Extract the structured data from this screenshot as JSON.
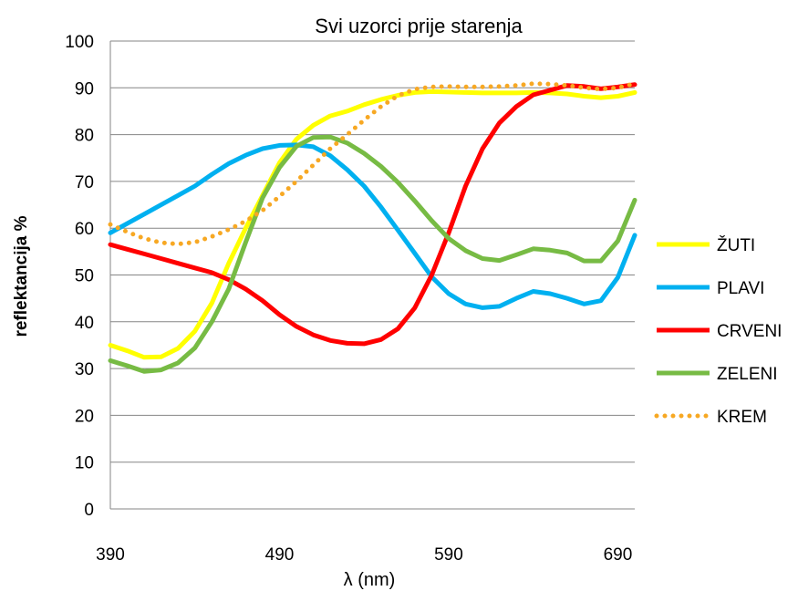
{
  "chart_data": {
    "type": "line",
    "title": "Svi uzorci prije starenja",
    "xlabel": "λ (nm)",
    "ylabel": "reflektancija %",
    "xlim": [
      390,
      700
    ],
    "ylim": [
      0,
      100
    ],
    "x_ticks": [
      390,
      490,
      590,
      690
    ],
    "y_ticks": [
      0,
      10,
      20,
      30,
      40,
      50,
      60,
      70,
      80,
      90,
      100
    ],
    "x_tick_labels": [
      "390",
      "490",
      "590",
      "690"
    ],
    "y_tick_labels": [
      "0",
      "10",
      "20",
      "30",
      "40",
      "50",
      "60",
      "70",
      "80",
      "90",
      "100"
    ],
    "grid": "horizontal",
    "legend_position": "right",
    "x": [
      390,
      400,
      410,
      420,
      430,
      440,
      450,
      460,
      470,
      480,
      490,
      500,
      510,
      520,
      530,
      540,
      550,
      560,
      570,
      580,
      590,
      600,
      610,
      620,
      630,
      640,
      650,
      660,
      670,
      680,
      690,
      700
    ],
    "series": [
      {
        "name": "ŽUTI",
        "color": "#ffff00",
        "style": "solid",
        "values": [
          35,
          33.8,
          32.4,
          32.5,
          34.3,
          38,
          44,
          52.5,
          60,
          67,
          74,
          79,
          82,
          84,
          85,
          86.4,
          87.5,
          88.4,
          89,
          89.2,
          89.1,
          89,
          88.9,
          88.9,
          88.9,
          89,
          88.9,
          88.7,
          88.2,
          87.9,
          88.2,
          89
        ]
      },
      {
        "name": "PLAVI",
        "color": "#00b0f0",
        "style": "solid",
        "values": [
          59,
          61,
          63,
          65,
          67,
          69,
          71.5,
          73.8,
          75.6,
          77,
          77.7,
          77.8,
          77.4,
          75.5,
          72.5,
          69,
          64.5,
          59.6,
          54.6,
          49.6,
          46,
          43.8,
          43,
          43.3,
          45,
          46.5,
          46,
          45,
          43.8,
          44.5,
          49.5,
          58.5
        ]
      },
      {
        "name": "CRVENI",
        "color": "#ff0000",
        "style": "solid",
        "values": [
          56.5,
          55.5,
          54.5,
          53.5,
          52.5,
          51.5,
          50.5,
          49,
          47,
          44.5,
          41.5,
          39,
          37.2,
          36,
          35.4,
          35.3,
          36.2,
          38.5,
          43,
          50,
          59,
          69,
          77,
          82.5,
          86,
          88.5,
          89.5,
          90.5,
          90.3,
          89.8,
          90.2,
          90.7
        ]
      },
      {
        "name": "ZELENI",
        "color": "#77bb44",
        "style": "solid",
        "values": [
          31.7,
          30.6,
          29.4,
          29.7,
          31.2,
          34.4,
          40,
          47,
          57,
          66.5,
          73,
          77.5,
          79.4,
          79.5,
          78.2,
          76,
          73.2,
          69.8,
          65.8,
          61.6,
          57.8,
          55.2,
          53.5,
          53.1,
          54.3,
          55.6,
          55.3,
          54.7,
          53,
          53,
          57.3,
          66
        ]
      },
      {
        "name": "KREM",
        "color": "#f7a823",
        "style": "dotted",
        "values": [
          60.8,
          59.2,
          57.8,
          56.9,
          56.6,
          57,
          58.2,
          59.7,
          61.5,
          63.8,
          66.8,
          70,
          73.5,
          77,
          80,
          83.1,
          86,
          88.3,
          89.7,
          90.2,
          90.3,
          90.2,
          90.2,
          90.3,
          90.5,
          90.9,
          90.8,
          90.5,
          90,
          89.7,
          90,
          90.9
        ]
      }
    ]
  }
}
